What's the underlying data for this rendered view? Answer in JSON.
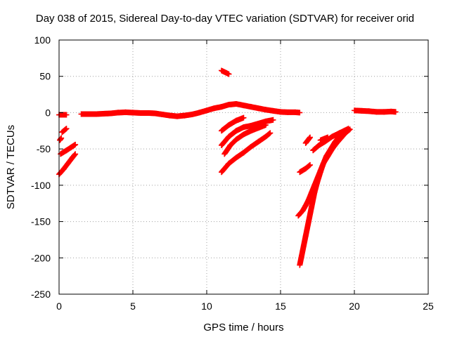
{
  "chart_data": {
    "type": "scatter",
    "title": "Day 038 of 2015, Sidereal Day-to-day VTEC variation (SDTVAR) for receiver orid",
    "xlabel": "GPS time / hours",
    "ylabel": "SDTVAR / TECUs",
    "xlim": [
      0,
      25
    ],
    "ylim": [
      -250,
      100
    ],
    "xticks": [
      0,
      5,
      10,
      15,
      20,
      25
    ],
    "yticks": [
      -250,
      -200,
      -150,
      -100,
      -50,
      0,
      50,
      100
    ],
    "grid": true,
    "legend": "none",
    "marker": "plus",
    "color": "#ff0000",
    "segments": [
      [
        [
          0.0,
          -3
        ],
        [
          0.5,
          -3
        ]
      ],
      [
        [
          0.05,
          -38
        ],
        [
          0.15,
          -35
        ]
      ],
      [
        [
          0.2,
          -27
        ],
        [
          0.5,
          -22
        ]
      ],
      [
        [
          0.0,
          -85
        ],
        [
          0.3,
          -78
        ],
        [
          0.6,
          -70
        ],
        [
          0.9,
          -62
        ],
        [
          1.1,
          -57
        ]
      ],
      [
        [
          0.1,
          -57
        ],
        [
          0.5,
          -52
        ],
        [
          0.8,
          -48
        ],
        [
          1.1,
          -44
        ]
      ],
      [
        [
          1.5,
          -2
        ],
        [
          2,
          -2
        ],
        [
          2.5,
          -2
        ],
        [
          3,
          -1.5
        ],
        [
          3.5,
          -1
        ],
        [
          4,
          0
        ],
        [
          4.5,
          0.5
        ],
        [
          5,
          0
        ],
        [
          5.5,
          -0.5
        ],
        [
          6,
          -0.5
        ],
        [
          6.5,
          -1
        ],
        [
          7,
          -2.5
        ],
        [
          7.5,
          -4
        ],
        [
          8,
          -5
        ],
        [
          8.5,
          -4
        ],
        [
          9,
          -2.5
        ],
        [
          9.5,
          0
        ],
        [
          10,
          3
        ],
        [
          10.5,
          6
        ],
        [
          11,
          8
        ],
        [
          11.5,
          11
        ],
        [
          12,
          12
        ],
        [
          12.5,
          10
        ],
        [
          13,
          8
        ],
        [
          13.5,
          6
        ],
        [
          14,
          4
        ],
        [
          14.5,
          2.5
        ],
        [
          15,
          1
        ],
        [
          15.5,
          0.5
        ],
        [
          16,
          0.5
        ],
        [
          16.3,
          0
        ]
      ],
      [
        [
          11.0,
          58
        ],
        [
          11.3,
          55
        ],
        [
          11.5,
          53
        ]
      ],
      [
        [
          11.0,
          -25
        ],
        [
          11.5,
          -17
        ],
        [
          12.0,
          -11
        ],
        [
          12.5,
          -7
        ]
      ],
      [
        [
          11.0,
          -45
        ],
        [
          11.5,
          -33
        ],
        [
          12.0,
          -25
        ],
        [
          12.5,
          -20
        ],
        [
          13.0,
          -18
        ],
        [
          13.5,
          -15
        ],
        [
          14.0,
          -12
        ],
        [
          14.5,
          -10
        ]
      ],
      [
        [
          11.2,
          -57
        ],
        [
          11.6,
          -45
        ],
        [
          12.0,
          -37
        ],
        [
          12.5,
          -30
        ],
        [
          13.0,
          -25
        ],
        [
          13.5,
          -21
        ],
        [
          14.0,
          -17
        ]
      ],
      [
        [
          11.0,
          -82
        ],
        [
          11.5,
          -70
        ],
        [
          12.0,
          -62
        ],
        [
          12.5,
          -55
        ],
        [
          13.0,
          -47
        ],
        [
          13.5,
          -40
        ],
        [
          14.0,
          -33
        ],
        [
          14.3,
          -28
        ]
      ],
      [
        [
          16.2,
          -142
        ],
        [
          16.5,
          -135
        ],
        [
          16.7,
          -128
        ],
        [
          16.9,
          -120
        ],
        [
          17.1,
          -110
        ],
        [
          17.3,
          -100
        ],
        [
          17.5,
          -90
        ],
        [
          17.7,
          -80
        ],
        [
          17.9,
          -70
        ],
        [
          18.1,
          -60
        ],
        [
          18.4,
          -50
        ],
        [
          18.7,
          -40
        ],
        [
          19.0,
          -32
        ],
        [
          19.3,
          -26
        ],
        [
          19.6,
          -22
        ]
      ],
      [
        [
          16.3,
          -210
        ],
        [
          16.5,
          -190
        ],
        [
          16.7,
          -170
        ],
        [
          16.9,
          -150
        ],
        [
          17.1,
          -130
        ],
        [
          17.3,
          -110
        ],
        [
          17.5,
          -95
        ],
        [
          17.7,
          -82
        ],
        [
          17.9,
          -70
        ],
        [
          18.2,
          -60
        ],
        [
          18.5,
          -50
        ],
        [
          18.8,
          -42
        ],
        [
          19.1,
          -35
        ],
        [
          19.4,
          -28
        ],
        [
          19.7,
          -23
        ]
      ],
      [
        [
          16.3,
          -82
        ],
        [
          16.7,
          -77
        ],
        [
          17.0,
          -72
        ]
      ],
      [
        [
          16.7,
          -42
        ],
        [
          17.0,
          -34
        ]
      ],
      [
        [
          17.2,
          -52
        ],
        [
          17.6,
          -45
        ],
        [
          18.0,
          -40
        ],
        [
          18.5,
          -33
        ],
        [
          19.0,
          -28
        ],
        [
          19.5,
          -23
        ]
      ],
      [
        [
          17.7,
          -38
        ],
        [
          18.2,
          -34
        ]
      ],
      [
        [
          20.0,
          3
        ],
        [
          20.5,
          2.5
        ],
        [
          21.0,
          2
        ],
        [
          21.5,
          1
        ],
        [
          22.0,
          1
        ],
        [
          22.5,
          1.5
        ],
        [
          22.8,
          1
        ]
      ]
    ]
  }
}
